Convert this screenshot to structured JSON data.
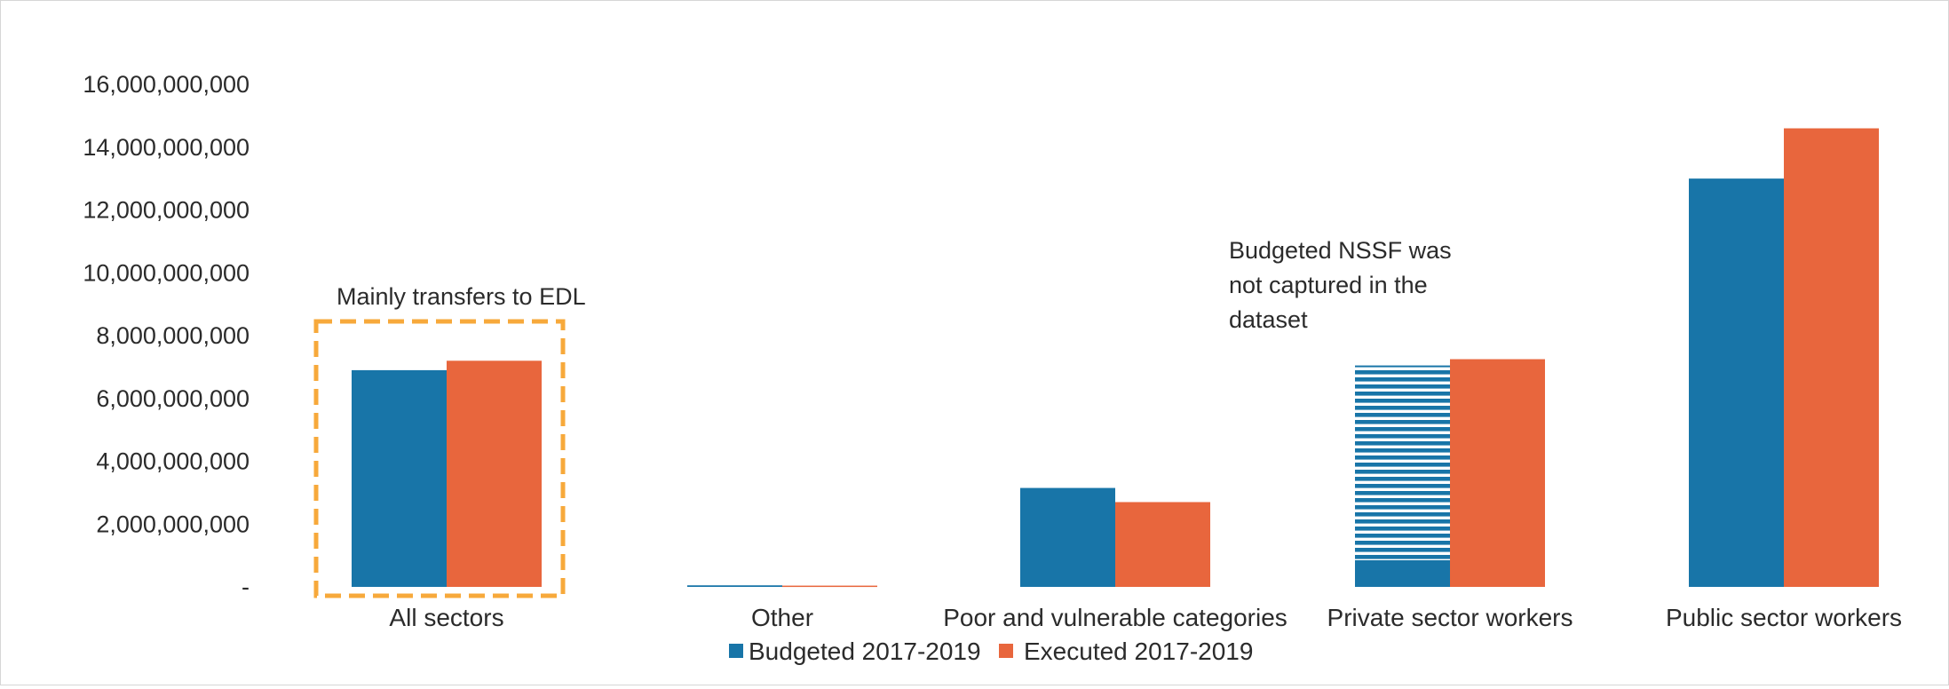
{
  "chart_data": {
    "type": "bar",
    "title": "",
    "xlabel": "",
    "ylabel": "",
    "ylim": [
      0,
      16000000000
    ],
    "yticks": [
      0,
      2000000000,
      4000000000,
      6000000000,
      8000000000,
      10000000000,
      12000000000,
      14000000000,
      16000000000
    ],
    "ytick_labels": [
      "-",
      "2,000,000,000",
      "4,000,000,000",
      "6,000,000,000",
      "8,000,000,000",
      "10,000,000,000",
      "12,000,000,000",
      "14,000,000,000",
      "16,000,000,000"
    ],
    "categories": [
      "All sectors",
      "Other",
      "Poor and vulnerable categories",
      "Private sector workers",
      "Public sector workers"
    ],
    "series": [
      {
        "name": "Budgeted 2017-2019",
        "color": "#1875a8",
        "values": [
          6900000000,
          50000000,
          3150000000,
          850000000,
          13000000000
        ]
      },
      {
        "name": "Executed 2017-2019",
        "color": "#e8663d",
        "values": [
          7200000000,
          40000000,
          2700000000,
          7250000000,
          14600000000
        ]
      }
    ],
    "striped_segment": {
      "category": "Private sector workers",
      "series": "Budgeted 2017-2019",
      "from": 850000000,
      "to": 7050000000
    },
    "legend_position": "bottom",
    "grid": false,
    "annotations": [
      {
        "text": "Mainly transfers to EDL",
        "box_color": "#f7a93b",
        "target": "All sectors"
      },
      {
        "lines": [
          "Budgeted NSSF was",
          "not captured in the",
          "dataset"
        ],
        "target": "Private sector workers"
      }
    ]
  }
}
